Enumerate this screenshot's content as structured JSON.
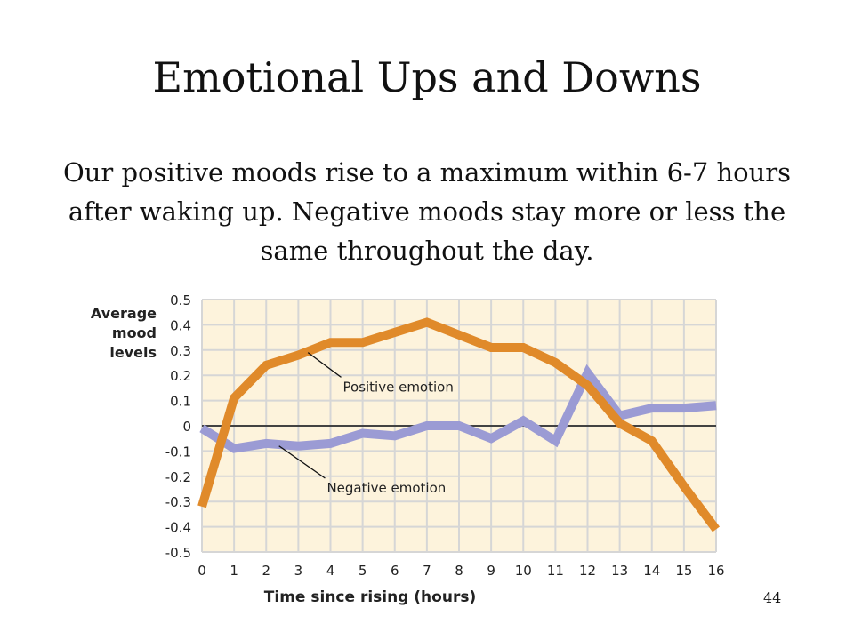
{
  "page": {
    "title": "Emotional Ups and Downs",
    "subtitle": "Our positive moods rise to a maximum within 6-7 hours after waking up. Negative moods stay more or less the same throughout the day.",
    "page_number": "44"
  },
  "chart_data": {
    "type": "line",
    "title": "",
    "ylabel_lines": [
      "Average",
      "mood",
      "levels"
    ],
    "xlabel": "Time since rising (hours)",
    "xlim": [
      0,
      16
    ],
    "ylim": [
      -0.5,
      0.5
    ],
    "x_ticks": [
      0,
      1,
      2,
      3,
      4,
      5,
      6,
      7,
      8,
      9,
      10,
      11,
      12,
      13,
      14,
      15,
      16
    ],
    "y_ticks": [
      0.5,
      0.4,
      0.3,
      0.2,
      0.1,
      0,
      -0.1,
      -0.2,
      -0.3,
      -0.4,
      -0.5
    ],
    "y_tick_labels": [
      "0.5",
      "0.4",
      "0.3",
      "0.2",
      "0.1",
      "0",
      "-0.1",
      "-0.2",
      "-0.3",
      "-0.4",
      "-0.5"
    ],
    "grid": true,
    "background": "#fdf3dc",
    "grid_color": "#d6d6d6",
    "series": [
      {
        "name": "Positive emotion",
        "color": "#e08a2a",
        "x": [
          0,
          1,
          2,
          3,
          4,
          5,
          6,
          7,
          8,
          9,
          10,
          11,
          12,
          13,
          14,
          15,
          16
        ],
        "values": [
          -0.32,
          0.11,
          0.24,
          0.28,
          0.33,
          0.33,
          0.37,
          0.41,
          0.36,
          0.31,
          0.31,
          0.25,
          0.16,
          0.01,
          -0.06,
          -0.24,
          -0.41
        ],
        "annotation": {
          "label": "Positive emotion",
          "x": 4.0,
          "y": 0.15,
          "point_x": 3.3,
          "point_y": 0.29
        }
      },
      {
        "name": "Negative emotion",
        "color": "#9b9bd4",
        "x": [
          0,
          1,
          2,
          3,
          4,
          5,
          6,
          7,
          8,
          9,
          10,
          11,
          12,
          13,
          14,
          15,
          16
        ],
        "values": [
          -0.01,
          -0.09,
          -0.07,
          -0.08,
          -0.07,
          -0.03,
          -0.04,
          0.0,
          0.0,
          -0.05,
          0.02,
          -0.06,
          0.21,
          0.04,
          0.07,
          0.07,
          0.08
        ],
        "annotation": {
          "label": "Negative emotion",
          "x": 3.5,
          "y": -0.25,
          "point_x": 2.4,
          "point_y": -0.08
        }
      }
    ]
  }
}
